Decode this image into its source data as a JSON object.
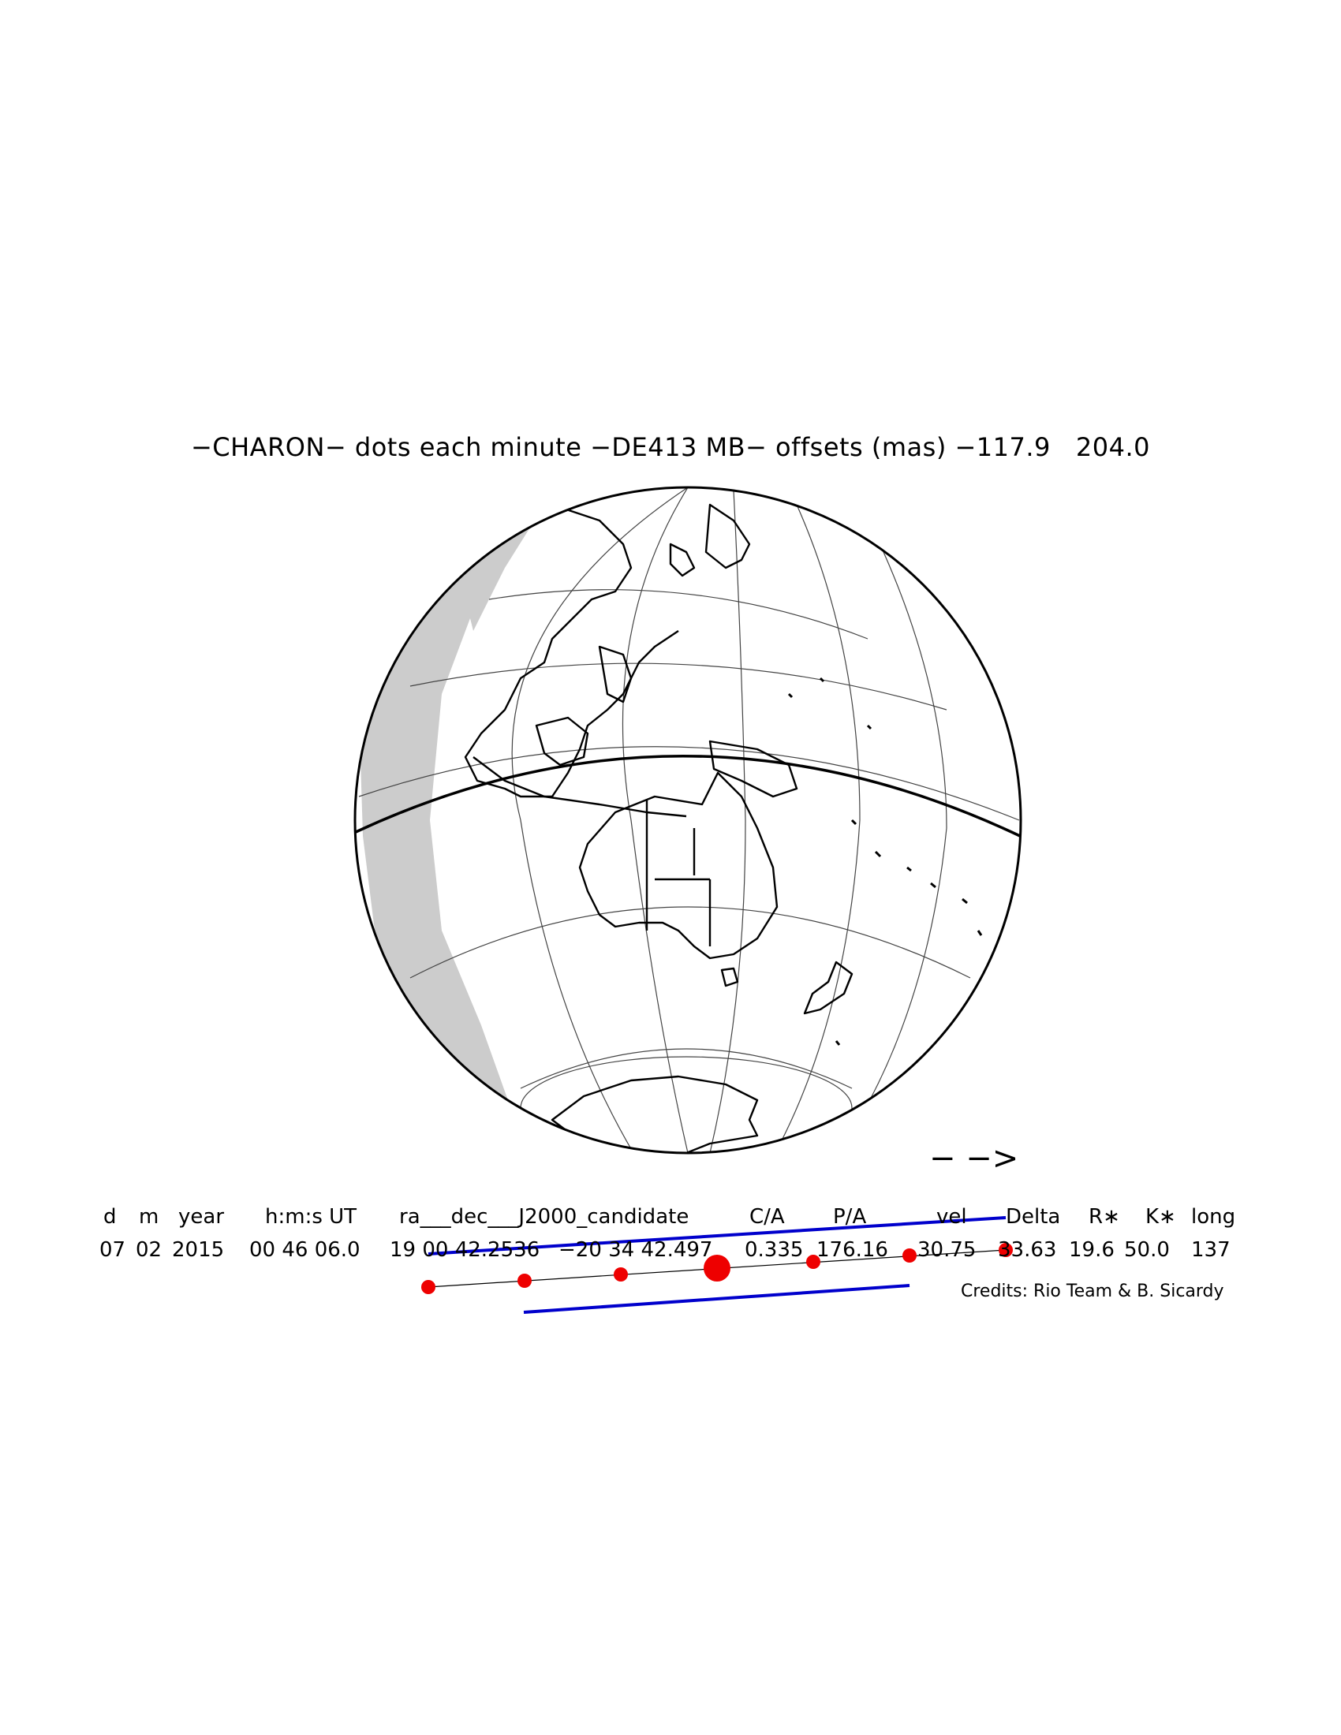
{
  "title": "−CHARON− dots each minute −DE413 MB− offsets (mas) −117.9   204.0",
  "direction_arrow": "− −>",
  "table": {
    "headers": [
      "d",
      "m",
      "year",
      "h:m:s UT",
      "ra___dec___J2000_candidate",
      "C/A",
      "P/A",
      "vel",
      "Delta",
      "R∗",
      "K∗",
      "long"
    ],
    "values": [
      "07",
      "02",
      "2015",
      "00 46 06.0",
      "19 00 42.2536",
      "−20 34 42.497",
      "0.335",
      "176.16",
      "30.75",
      "33.63",
      "19.6",
      "50.0",
      "137"
    ]
  },
  "credits": "Credits: Rio Team & B. Sicardy",
  "map": {
    "view": "orthographic globe centered on Australia / western Pacific",
    "night_side_color": "#cccccc",
    "land_outline_color": "#000000"
  },
  "track": {
    "dot_color": "#ee0000",
    "limit_line_color": "#0000cc",
    "dot_count": 7,
    "central_dot_index": 3
  }
}
